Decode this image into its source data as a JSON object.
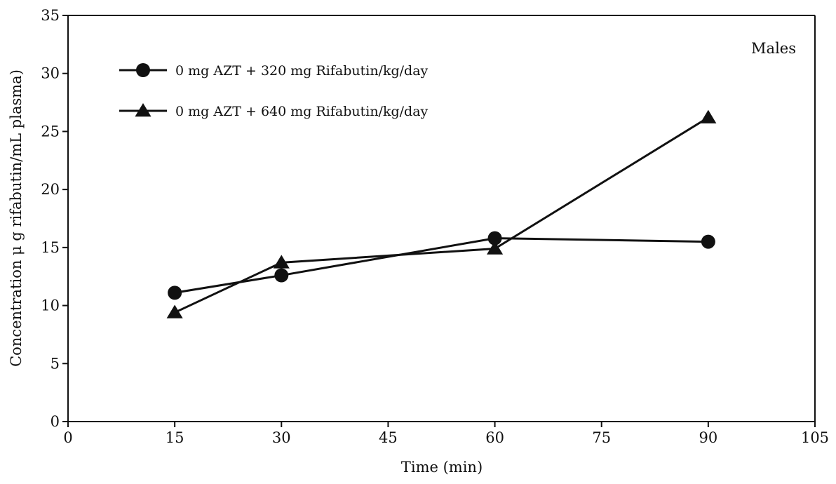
{
  "chart_data": {
    "type": "line",
    "title": "",
    "annotation": "Males",
    "xlabel": "Time (min)",
    "ylabel": "Concentration μ g rifabutin/mL plasma)",
    "xlim": [
      0,
      105
    ],
    "ylim": [
      0,
      35
    ],
    "xticks": [
      0,
      15,
      30,
      45,
      60,
      75,
      90,
      105
    ],
    "yticks": [
      0,
      5,
      10,
      15,
      20,
      25,
      30,
      35
    ],
    "grid": false,
    "legend_position": "top-left",
    "series": [
      {
        "name": "0 mg AZT + 320 mg Rifabutin/kg/day",
        "marker": "circle",
        "color": "#111111",
        "x": [
          15,
          30,
          60,
          90
        ],
        "y": [
          11.1,
          12.6,
          15.8,
          15.5
        ]
      },
      {
        "name": "0 mg AZT + 640 mg Rifabutin/kg/day",
        "marker": "triangle",
        "color": "#111111",
        "x": [
          15,
          30,
          60,
          90
        ],
        "y": [
          9.4,
          13.7,
          14.9,
          26.2
        ]
      }
    ]
  }
}
